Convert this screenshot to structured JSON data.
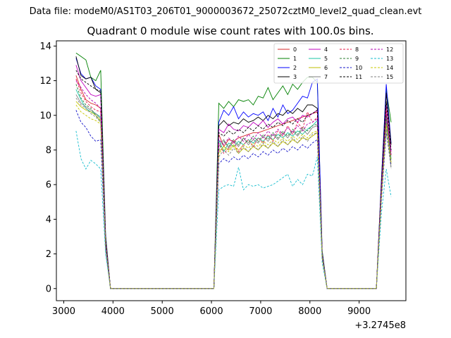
{
  "chart_data": {
    "type": "line",
    "suptitle": "Data file: modeM0/AS1T03_206T01_9000003672_25072cztM0_level2_quad_clean.evt",
    "title": "Quadrant 0 module wise count rates with 100.0s bins.",
    "xlabel": "",
    "ylabel": "",
    "x_offset_label": "+3.2745e8",
    "xlim": [
      2850,
      9950
    ],
    "ylim": [
      -0.7,
      14.3
    ],
    "x_ticks": [
      3000,
      4000,
      5000,
      6000,
      7000,
      8000,
      9000
    ],
    "x_tick_labels": [
      "3000",
      "4000",
      "5000",
      "6000",
      "7000",
      "8000",
      "9000"
    ],
    "y_ticks": [
      0,
      2,
      4,
      6,
      8,
      10,
      12,
      14
    ],
    "y_tick_labels": [
      "0",
      "2",
      "4",
      "6",
      "8",
      "10",
      "12",
      "14"
    ],
    "grid": false,
    "legend_position": "top-right",
    "segments_x": [
      [
        3250,
        3350,
        3450,
        3550,
        3650,
        3750,
        3850,
        3950,
        4050,
        4150,
        4250,
        4350,
        4450,
        4550,
        4650,
        4750,
        4850,
        4950,
        5050,
        5150,
        5250,
        5350,
        5450,
        5550,
        5650,
        5750,
        5850,
        5950,
        6050,
        6150,
        6250,
        6350,
        6450,
        6550,
        6650,
        6750,
        6850,
        6950,
        7050,
        7150,
        7250,
        7350,
        7450,
        7550,
        7650,
        7750,
        7850,
        7950,
        8050,
        8150,
        8250,
        8350,
        8450,
        8550,
        8650,
        8750,
        8850,
        8950,
        9050,
        9150,
        9250,
        9350,
        9450,
        9550,
        9650
      ]
    ],
    "series": [
      {
        "name": "0",
        "color": "#d62728",
        "dash": "solid",
        "values": [
          12.3,
          11.5,
          10.9,
          10.7,
          10.6,
          10.4,
          2.6,
          0,
          0,
          0,
          0,
          0,
          0,
          0,
          0,
          0,
          0,
          0,
          0,
          0,
          0,
          0,
          0,
          0,
          0,
          0,
          0,
          0,
          0,
          8.9,
          8.2,
          8.6,
          8.5,
          8.7,
          8.8,
          8.9,
          9.0,
          9.0,
          9.1,
          9.2,
          9.3,
          9.4,
          9.5,
          9.6,
          9.7,
          9.8,
          9.9,
          10.0,
          10.1,
          10.2,
          1.9,
          0,
          0,
          0,
          0,
          0,
          0,
          0,
          0,
          0,
          0,
          0,
          5.6,
          10.1,
          7.7
        ]
      },
      {
        "name": "1",
        "color": "#008000",
        "dash": "solid",
        "values": [
          13.6,
          13.4,
          13.2,
          12.2,
          12.0,
          12.6,
          3.1,
          0,
          0,
          0,
          0,
          0,
          0,
          0,
          0,
          0,
          0,
          0,
          0,
          0,
          0,
          0,
          0,
          0,
          0,
          0,
          0,
          0,
          0,
          10.7,
          10.4,
          10.8,
          10.5,
          10.9,
          10.8,
          10.9,
          10.6,
          11.1,
          11.0,
          11.6,
          10.9,
          11.3,
          11.7,
          11.2,
          11.8,
          11.5,
          11.9,
          12.2,
          12.2,
          11.9,
          2.2,
          0,
          0,
          0,
          0,
          0,
          0,
          0,
          0,
          0,
          0,
          0,
          6.2,
          11.5,
          9.6
        ]
      },
      {
        "name": "2",
        "color": "#0000ff",
        "dash": "solid",
        "values": [
          13.3,
          12.4,
          12.1,
          12.2,
          11.7,
          11.5,
          2.9,
          0,
          0,
          0,
          0,
          0,
          0,
          0,
          0,
          0,
          0,
          0,
          0,
          0,
          0,
          0,
          0,
          0,
          0,
          0,
          0,
          0,
          0,
          9.6,
          10.3,
          10.0,
          10.5,
          9.8,
          10.2,
          9.9,
          10.1,
          10.0,
          10.2,
          9.7,
          10.4,
          9.9,
          10.6,
          10.1,
          10.3,
          10.7,
          11.1,
          11.0,
          11.9,
          12.1,
          2.1,
          0,
          0,
          0,
          0,
          0,
          0,
          0,
          0,
          0,
          0,
          0,
          6.1,
          11.8,
          8.4
        ]
      },
      {
        "name": "3",
        "color": "#000000",
        "dash": "solid",
        "values": [
          13.4,
          12.3,
          12.1,
          12.2,
          11.5,
          11.3,
          2.8,
          0,
          0,
          0,
          0,
          0,
          0,
          0,
          0,
          0,
          0,
          0,
          0,
          0,
          0,
          0,
          0,
          0,
          0,
          0,
          0,
          0,
          0,
          9.4,
          9.7,
          9.4,
          9.6,
          9.5,
          9.8,
          9.6,
          9.7,
          9.9,
          9.7,
          10.0,
          9.8,
          10.1,
          10.0,
          10.3,
          10.1,
          10.4,
          10.2,
          10.6,
          10.6,
          10.4,
          2.0,
          0,
          0,
          0,
          0,
          0,
          0,
          0,
          0,
          0,
          0,
          0,
          5.9,
          11.3,
          8.3
        ]
      },
      {
        "name": "4",
        "color": "#bf00bf",
        "dash": "solid",
        "values": [
          12.9,
          12.0,
          11.6,
          11.2,
          11.1,
          11.2,
          2.8,
          0,
          0,
          0,
          0,
          0,
          0,
          0,
          0,
          0,
          0,
          0,
          0,
          0,
          0,
          0,
          0,
          0,
          0,
          0,
          0,
          0,
          0,
          9.2,
          9.0,
          9.5,
          9.2,
          9.1,
          9.4,
          9.3,
          9.6,
          9.4,
          9.7,
          9.3,
          9.6,
          9.8,
          9.5,
          9.8,
          9.9,
          9.6,
          10.0,
          9.9,
          10.1,
          10.3,
          2.0,
          0,
          0,
          0,
          0,
          0,
          0,
          0,
          0,
          0,
          0,
          0,
          5.8,
          10.6,
          7.9
        ]
      },
      {
        "name": "5",
        "color": "#1ac6a6",
        "dash": "solid",
        "values": [
          11.5,
          10.9,
          10.4,
          10.2,
          10.1,
          9.9,
          2.5,
          0,
          0,
          0,
          0,
          0,
          0,
          0,
          0,
          0,
          0,
          0,
          0,
          0,
          0,
          0,
          0,
          0,
          0,
          0,
          0,
          0,
          0,
          8.6,
          7.9,
          8.4,
          8.2,
          8.5,
          8.3,
          8.6,
          8.4,
          8.7,
          8.5,
          8.8,
          8.6,
          8.9,
          8.7,
          9.0,
          8.8,
          9.1,
          8.9,
          9.2,
          9.4,
          9.7,
          1.9,
          0,
          0,
          0,
          0,
          0,
          0,
          0,
          0,
          0,
          0,
          0,
          5.5,
          9.9,
          7.5
        ]
      },
      {
        "name": "6",
        "color": "#bfbf00",
        "dash": "solid",
        "values": [
          10.8,
          10.5,
          10.3,
          10.2,
          10.0,
          9.7,
          2.4,
          0,
          0,
          0,
          0,
          0,
          0,
          0,
          0,
          0,
          0,
          0,
          0,
          0,
          0,
          0,
          0,
          0,
          0,
          0,
          0,
          0,
          0,
          7.9,
          8.2,
          8.0,
          8.3,
          7.8,
          8.1,
          7.9,
          8.2,
          8.0,
          8.3,
          8.1,
          8.4,
          8.2,
          8.5,
          8.3,
          8.6,
          8.4,
          8.7,
          8.6,
          8.8,
          9.0,
          1.8,
          0,
          0,
          0,
          0,
          0,
          0,
          0,
          0,
          0,
          0,
          0,
          5.3,
          9.6,
          7.2
        ]
      },
      {
        "name": "7",
        "color": "#7f7f7f",
        "dash": "solid",
        "values": [
          11.2,
          10.7,
          10.5,
          10.3,
          10.1,
          9.8,
          2.5,
          0,
          0,
          0,
          0,
          0,
          0,
          0,
          0,
          0,
          0,
          0,
          0,
          0,
          0,
          0,
          0,
          0,
          0,
          0,
          0,
          0,
          0,
          8.2,
          8.6,
          8.1,
          8.5,
          8.2,
          8.7,
          8.3,
          8.6,
          8.4,
          8.8,
          8.5,
          8.9,
          8.6,
          9.0,
          8.7,
          9.1,
          8.8,
          9.2,
          8.9,
          9.3,
          9.4,
          1.9,
          0,
          0,
          0,
          0,
          0,
          0,
          0,
          0,
          0,
          0,
          0,
          5.4,
          9.8,
          7.0
        ]
      },
      {
        "name": "8",
        "color": "#e6194b",
        "dash": "dashed",
        "values": [
          12.1,
          11.3,
          10.8,
          10.5,
          10.3,
          10.2,
          2.6,
          0,
          0,
          0,
          0,
          0,
          0,
          0,
          0,
          0,
          0,
          0,
          0,
          0,
          0,
          0,
          0,
          0,
          0,
          0,
          0,
          0,
          0,
          8.4,
          7.8,
          8.1,
          8.5,
          7.9,
          8.3,
          8.6,
          8.2,
          8.7,
          8.4,
          8.9,
          8.5,
          9.1,
          8.8,
          9.4,
          8.9,
          9.6,
          9.2,
          10.2,
          9.6,
          9.9,
          1.9,
          0,
          0,
          0,
          0,
          0,
          0,
          0,
          0,
          0,
          0,
          0,
          5.7,
          10.4,
          7.6
        ]
      },
      {
        "name": "9",
        "color": "#2e7d32",
        "dash": "dashed",
        "values": [
          11.8,
          11.0,
          10.6,
          10.4,
          10.0,
          9.6,
          2.5,
          0,
          0,
          0,
          0,
          0,
          0,
          0,
          0,
          0,
          0,
          0,
          0,
          0,
          0,
          0,
          0,
          0,
          0,
          0,
          0,
          0,
          0,
          8.0,
          8.5,
          8.2,
          8.6,
          8.3,
          8.7,
          8.4,
          8.8,
          8.5,
          8.9,
          8.6,
          9.0,
          8.7,
          9.1,
          8.8,
          9.2,
          8.9,
          9.3,
          9.1,
          9.4,
          9.5,
          1.9,
          0,
          0,
          0,
          0,
          0,
          0,
          0,
          0,
          0,
          0,
          0,
          5.5,
          10.0,
          7.4
        ]
      },
      {
        "name": "10",
        "color": "#1515c8",
        "dash": "dashed",
        "values": [
          10.3,
          9.6,
          9.3,
          8.8,
          8.5,
          8.6,
          2.2,
          0,
          0,
          0,
          0,
          0,
          0,
          0,
          0,
          0,
          0,
          0,
          0,
          0,
          0,
          0,
          0,
          0,
          0,
          0,
          0,
          0,
          0,
          7.2,
          7.5,
          7.3,
          7.6,
          7.4,
          7.7,
          7.5,
          7.8,
          7.6,
          7.9,
          7.7,
          8.0,
          7.8,
          8.1,
          7.9,
          8.2,
          8.0,
          8.3,
          8.1,
          8.4,
          8.6,
          1.7,
          0,
          0,
          0,
          0,
          0,
          0,
          0,
          0,
          0,
          0,
          0,
          5.0,
          9.0,
          7.1
        ]
      },
      {
        "name": "11",
        "color": "#000000",
        "dash": "dashed",
        "values": [
          12.6,
          12.1,
          11.9,
          11.7,
          11.5,
          11.4,
          2.8,
          0,
          0,
          0,
          0,
          0,
          0,
          0,
          0,
          0,
          0,
          0,
          0,
          0,
          0,
          0,
          0,
          0,
          0,
          0,
          0,
          0,
          0,
          9.0,
          8.8,
          9.1,
          8.9,
          9.2,
          9.0,
          9.3,
          9.1,
          9.4,
          9.2,
          9.5,
          9.3,
          9.6,
          9.4,
          9.7,
          9.5,
          9.8,
          9.6,
          10.0,
          10.1,
          10.3,
          2.0,
          0,
          0,
          0,
          0,
          0,
          0,
          0,
          0,
          0,
          0,
          0,
          5.8,
          10.8,
          8.0
        ]
      },
      {
        "name": "12",
        "color": "#b000b0",
        "dash": "dashed",
        "values": [
          12.0,
          11.6,
          11.2,
          10.9,
          10.7,
          10.4,
          2.6,
          0,
          0,
          0,
          0,
          0,
          0,
          0,
          0,
          0,
          0,
          0,
          0,
          0,
          0,
          0,
          0,
          0,
          0,
          0,
          0,
          0,
          0,
          8.6,
          8.3,
          8.7,
          8.4,
          8.8,
          8.5,
          8.9,
          8.6,
          9.0,
          8.7,
          9.1,
          8.8,
          9.2,
          8.9,
          9.3,
          9.0,
          9.4,
          9.1,
          9.5,
          9.6,
          9.8,
          1.9,
          0,
          0,
          0,
          0,
          0,
          0,
          0,
          0,
          0,
          0,
          0,
          5.6,
          10.2,
          7.7
        ]
      },
      {
        "name": "13",
        "color": "#17becf",
        "dash": "dashed",
        "values": [
          9.1,
          7.5,
          6.9,
          7.4,
          7.2,
          6.9,
          2.0,
          0,
          0,
          0,
          0,
          0,
          0,
          0,
          0,
          0,
          0,
          0,
          0,
          0,
          0,
          0,
          0,
          0,
          0,
          0,
          0,
          0,
          0,
          5.7,
          5.9,
          6.0,
          5.9,
          7.0,
          5.7,
          6.0,
          5.9,
          6.0,
          5.8,
          5.9,
          6.0,
          6.2,
          6.4,
          6.6,
          5.9,
          6.3,
          6.0,
          6.6,
          6.5,
          7.6,
          1.5,
          0,
          0,
          0,
          0,
          0,
          0,
          0,
          0,
          0,
          0,
          0,
          4.3,
          6.9,
          5.3
        ]
      },
      {
        "name": "14",
        "color": "#c8c800",
        "dash": "dashed",
        "values": [
          10.6,
          10.2,
          10.0,
          9.8,
          9.7,
          9.5,
          2.4,
          0,
          0,
          0,
          0,
          0,
          0,
          0,
          0,
          0,
          0,
          0,
          0,
          0,
          0,
          0,
          0,
          0,
          0,
          0,
          0,
          0,
          0,
          7.8,
          8.1,
          7.9,
          8.2,
          8.0,
          8.3,
          8.1,
          8.4,
          8.2,
          8.5,
          8.3,
          8.6,
          8.4,
          8.7,
          8.5,
          8.8,
          8.6,
          8.9,
          8.7,
          9.0,
          9.1,
          1.8,
          0,
          0,
          0,
          0,
          0,
          0,
          0,
          0,
          0,
          0,
          0,
          5.2,
          9.4,
          7.3
        ]
      },
      {
        "name": "15",
        "color": "#808080",
        "dash": "dashed",
        "values": [
          11.0,
          10.6,
          10.4,
          10.1,
          9.9,
          9.6,
          2.4,
          0,
          0,
          0,
          0,
          0,
          0,
          0,
          0,
          0,
          0,
          0,
          0,
          0,
          0,
          0,
          0,
          0,
          0,
          0,
          0,
          0,
          0,
          7.6,
          8.0,
          7.7,
          8.1,
          7.8,
          8.2,
          7.9,
          8.3,
          8.0,
          8.4,
          8.1,
          8.5,
          8.2,
          8.6,
          8.3,
          8.7,
          8.4,
          8.8,
          8.5,
          8.9,
          9.0,
          1.8,
          0,
          0,
          0,
          0,
          0,
          0,
          0,
          0,
          0,
          0,
          0,
          5.1,
          9.2,
          6.9
        ]
      }
    ]
  }
}
